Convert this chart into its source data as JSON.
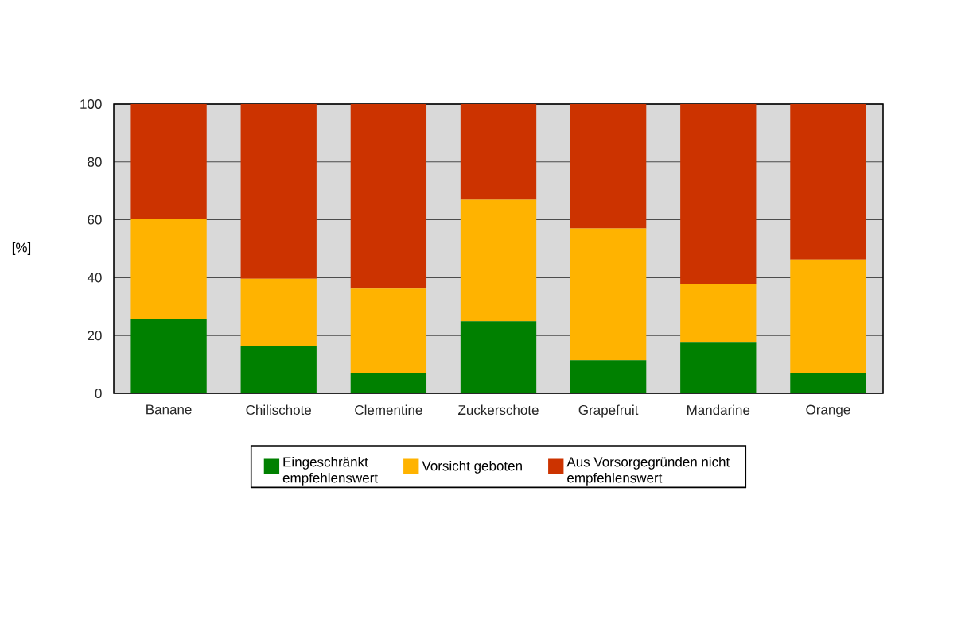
{
  "chart_data": {
    "type": "bar",
    "stacked": true,
    "ylabel": "[%]",
    "categories": [
      "Banane",
      "Chilischote",
      "Clementine",
      "Zuckerschote",
      "Grapefruit",
      "Mandarine",
      "Orange"
    ],
    "series": [
      {
        "name": "Eingeschränkt empfehlenswert",
        "color": "#008000",
        "values": [
          25.6,
          16.2,
          6.9,
          24.9,
          11.5,
          17.5,
          6.9
        ]
      },
      {
        "name": "Vorsicht geboten",
        "color": "#ffb300",
        "values": [
          34.7,
          23.4,
          29.3,
          42.0,
          45.5,
          20.2,
          39.3
        ]
      },
      {
        "name": "Aus Vorsorgegründen nicht empfehlenswert",
        "color": "#cc3300",
        "values": [
          39.7,
          60.4,
          63.8,
          33.1,
          43.0,
          62.3,
          53.8
        ]
      }
    ],
    "ylim": [
      0,
      100
    ],
    "yticks": [
      0,
      20,
      40,
      60,
      80,
      100
    ],
    "grid": "y",
    "legend": "bottom"
  }
}
